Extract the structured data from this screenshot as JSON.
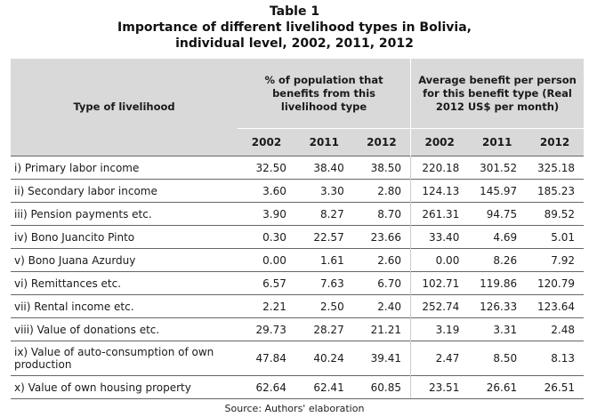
{
  "title": {
    "line1": "Table 1",
    "line2": "Importance of different livelihood types in Bolivia,",
    "line3": "individual level, 2002, 2011, 2012"
  },
  "header": {
    "type_col": "Type of livelihood",
    "group1": "% of population that benefits from this livelihood type",
    "group2": "Average benefit per person for this benefit type (Real 2012 US$ per month)",
    "years": [
      "2002",
      "2011",
      "2012",
      "2002",
      "2011",
      "2012"
    ]
  },
  "rows": [
    {
      "label": "i) Primary labor income",
      "values": [
        "32.50",
        "38.40",
        "38.50",
        "220.18",
        "301.52",
        "325.18"
      ]
    },
    {
      "label": "ii) Secondary labor income",
      "values": [
        "3.60",
        "3.30",
        "2.80",
        "124.13",
        "145.97",
        "185.23"
      ]
    },
    {
      "label": "iii) Pension payments etc.",
      "values": [
        "3.90",
        "8.27",
        "8.70",
        "261.31",
        "94.75",
        "89.52"
      ]
    },
    {
      "label": "iv) Bono Juancito Pinto",
      "values": [
        "0.30",
        "22.57",
        "23.66",
        "33.40",
        "4.69",
        "5.01"
      ]
    },
    {
      "label": "v) Bono Juana Azurduy",
      "values": [
        "0.00",
        "1.61",
        "2.60",
        "0.00",
        "8.26",
        "7.92"
      ]
    },
    {
      "label": "vi) Remittances etc.",
      "values": [
        "6.57",
        "7.63",
        "6.70",
        "102.71",
        "119.86",
        "120.79"
      ]
    },
    {
      "label": "vii) Rental income etc.",
      "values": [
        "2.21",
        "2.50",
        "2.40",
        "252.74",
        "126.33",
        "123.64"
      ]
    },
    {
      "label": "viii) Value of donations etc.",
      "values": [
        "29.73",
        "28.27",
        "21.21",
        "3.19",
        "3.31",
        "2.48"
      ]
    },
    {
      "label": "ix) Value of auto-consumption of own production",
      "values": [
        "47.84",
        "40.24",
        "39.41",
        "2.47",
        "8.50",
        "8.13"
      ]
    },
    {
      "label": "x) Value of own housing property",
      "values": [
        "62.64",
        "62.41",
        "60.85",
        "23.51",
        "26.61",
        "26.51"
      ]
    }
  ],
  "source": "Source: Authors' elaboration"
}
